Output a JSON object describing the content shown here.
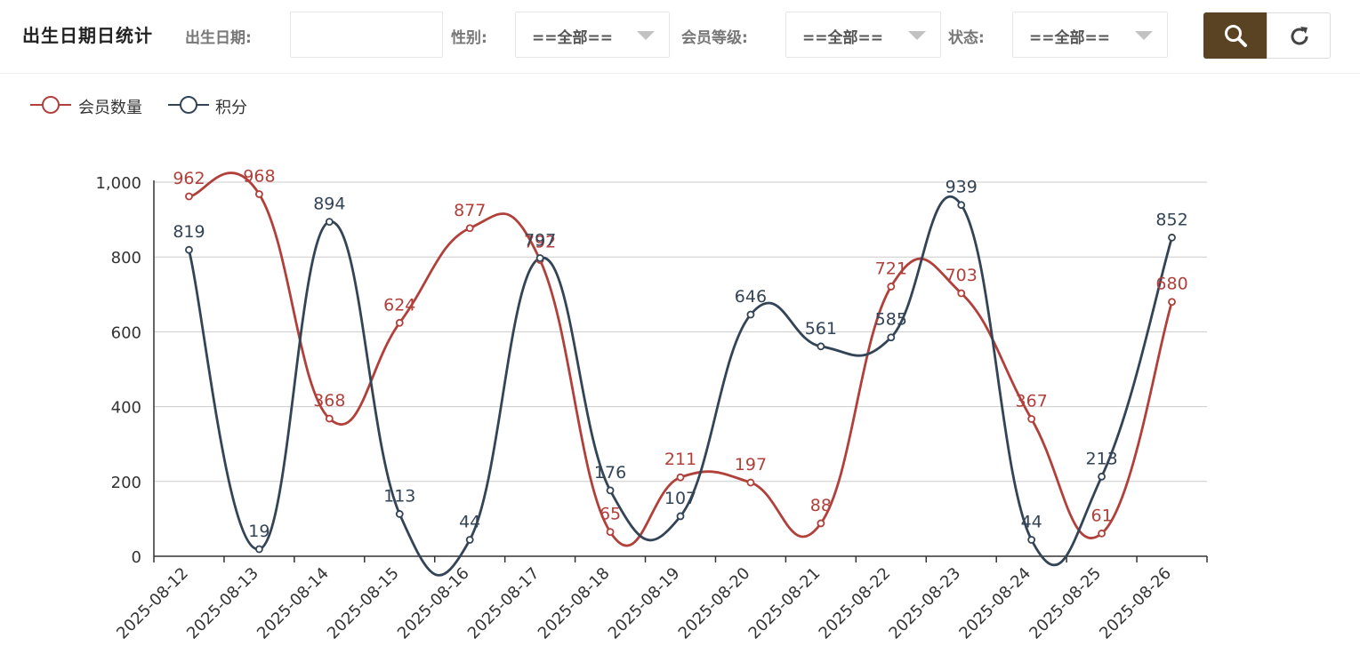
{
  "header": {
    "title": "出生日期日统计",
    "filters": {
      "birth_label": "出生日期:",
      "birth_value": "",
      "gender_label": "性别:",
      "gender_value": "==全部==",
      "level_label": "会员等级:",
      "level_value": "==全部==",
      "status_label": "状态:",
      "status_value": "==全部=="
    },
    "buttons": {
      "search_icon": "search-icon",
      "reset_icon": "refresh-icon",
      "search_color": "#5a4322"
    }
  },
  "chart_data": {
    "type": "line",
    "smooth": true,
    "categories": [
      "2025-08-12",
      "2025-08-13",
      "2025-08-14",
      "2025-08-15",
      "2025-08-16",
      "2025-08-17",
      "2025-08-18",
      "2025-08-19",
      "2025-08-20",
      "2025-08-21",
      "2025-08-22",
      "2025-08-23",
      "2025-08-24",
      "2025-08-25",
      "2025-08-26"
    ],
    "series": [
      {
        "name": "会员数量",
        "color": "#b1403b",
        "values": [
          962,
          968,
          368,
          624,
          877,
          792,
          65,
          211,
          197,
          88,
          721,
          703,
          367,
          61,
          680
        ]
      },
      {
        "name": "积分",
        "color": "#334456",
        "values": [
          819,
          19,
          894,
          113,
          44,
          797,
          176,
          107,
          646,
          561,
          585,
          939,
          44,
          213,
          852
        ]
      }
    ],
    "ylim": [
      0,
      1000
    ],
    "yticks": [
      0,
      200,
      400,
      600,
      800,
      1000
    ],
    "ytick_labels": [
      "0",
      "200",
      "400",
      "600",
      "800",
      "1,000"
    ],
    "xlabel": "",
    "ylabel": "",
    "legend_position": "top-left",
    "grid": true
  }
}
